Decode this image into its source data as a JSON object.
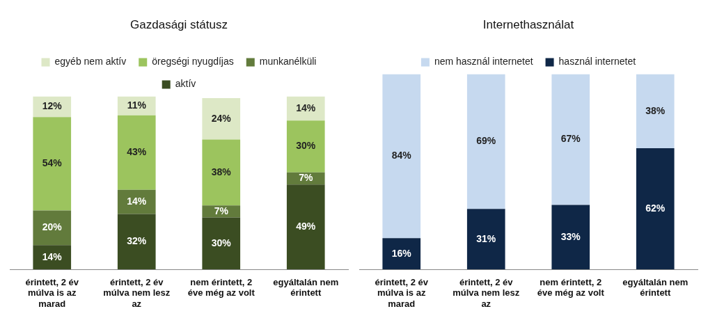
{
  "chart_data": [
    {
      "type": "bar",
      "title": "Gazdasági státusz",
      "stacked": true,
      "legend": "top",
      "grid": false,
      "categories": [
        "érintett, 2 év múlva is az marad",
        "érintett, 2 év múlva nem lesz az",
        "nem érintett, 2 éve még az volt",
        "egyáltalán nem érintett"
      ],
      "series": [
        {
          "name": "aktív",
          "color": "#3b4d22",
          "values": [
            14,
            32,
            30,
            49
          ],
          "value_labels": [
            "14%",
            "32%",
            "30%",
            "49%"
          ]
        },
        {
          "name": "munkanélküli",
          "color": "#627b3c",
          "values": [
            20,
            14,
            7,
            7
          ],
          "value_labels": [
            "20%",
            "14%",
            "7%",
            "7%"
          ]
        },
        {
          "name": "öregségi nyugdíjas",
          "color": "#9cc45e",
          "values": [
            54,
            43,
            38,
            30
          ],
          "value_labels": [
            "54%",
            "43%",
            "38%",
            "30%"
          ]
        },
        {
          "name": "egyéb nem aktív",
          "color": "#dde8c6",
          "values": [
            12,
            11,
            24,
            14
          ],
          "value_labels": [
            "12%",
            "11%",
            "24%",
            "14%"
          ]
        }
      ]
    },
    {
      "type": "bar",
      "title": "Internethasználat",
      "stacked": true,
      "legend": "top",
      "grid": false,
      "categories": [
        "érintett, 2 év múlva is az marad",
        "érintett, 2 év múlva nem lesz az",
        "nem érintett, 2 éve még az volt",
        "egyáltalán nem érintett"
      ],
      "series": [
        {
          "name": "használ internetet",
          "color": "#0f2747",
          "values": [
            16,
            31,
            33,
            62
          ],
          "value_labels": [
            "16%",
            "31%",
            "33%",
            "62%"
          ]
        },
        {
          "name": "nem használ internetet",
          "color": "#c6d9ef",
          "values": [
            84,
            69,
            67,
            38
          ],
          "value_labels": [
            "84%",
            "69%",
            "67%",
            "38%"
          ]
        }
      ]
    }
  ]
}
